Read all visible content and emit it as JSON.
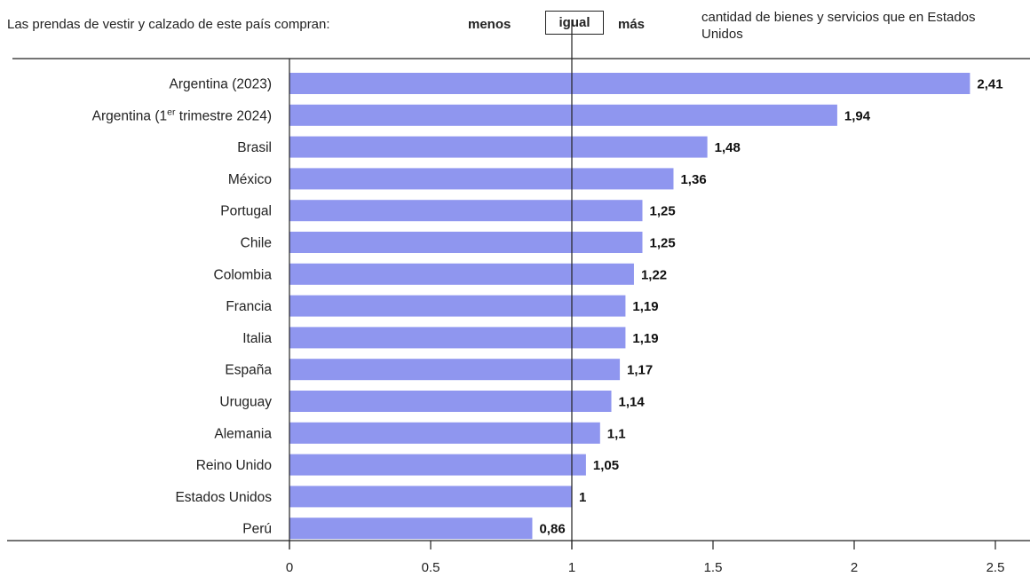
{
  "header": {
    "lead": "Las prendas de vestir y calzado de este país compran:",
    "less": "menos",
    "equal": "igual",
    "more": "más",
    "right": "cantidad de bienes y servicios que en Estados Unidos"
  },
  "colors": {
    "bar": "#8f96ef",
    "axis": "#222222"
  },
  "chart_data": {
    "type": "bar",
    "orientation": "horizontal",
    "categories": [
      {
        "label": "Argentina (2023)"
      },
      {
        "label": "Argentina (1",
        "sup": "er",
        "tail": " trimestre 2024)"
      },
      {
        "label": "Brasil"
      },
      {
        "label": "México"
      },
      {
        "label": "Portugal"
      },
      {
        "label": "Chile"
      },
      {
        "label": "Colombia"
      },
      {
        "label": "Francia"
      },
      {
        "label": "Italia"
      },
      {
        "label": "España"
      },
      {
        "label": "Uruguay"
      },
      {
        "label": "Alemania"
      },
      {
        "label": "Reino Unido"
      },
      {
        "label": "Estados Unidos"
      },
      {
        "label": "Perú"
      }
    ],
    "values": [
      2.41,
      1.94,
      1.48,
      1.36,
      1.25,
      1.25,
      1.22,
      1.19,
      1.19,
      1.17,
      1.14,
      1.1,
      1.05,
      1,
      0.86
    ],
    "value_labels": [
      "2,41",
      "1,94",
      "1,48",
      "1,36",
      "1,25",
      "1,25",
      "1,22",
      "1,19",
      "1,19",
      "1,17",
      "1,14",
      "1,1",
      "1,05",
      "1",
      "0,86"
    ],
    "xlim": [
      0,
      2.5
    ],
    "xticks": [
      0,
      0.5,
      1,
      1.5,
      2,
      2.5
    ],
    "xtick_labels": [
      "0",
      "0.5",
      "1",
      "1.5",
      "2",
      "2.5"
    ],
    "reference_line": 1,
    "grid": false
  }
}
